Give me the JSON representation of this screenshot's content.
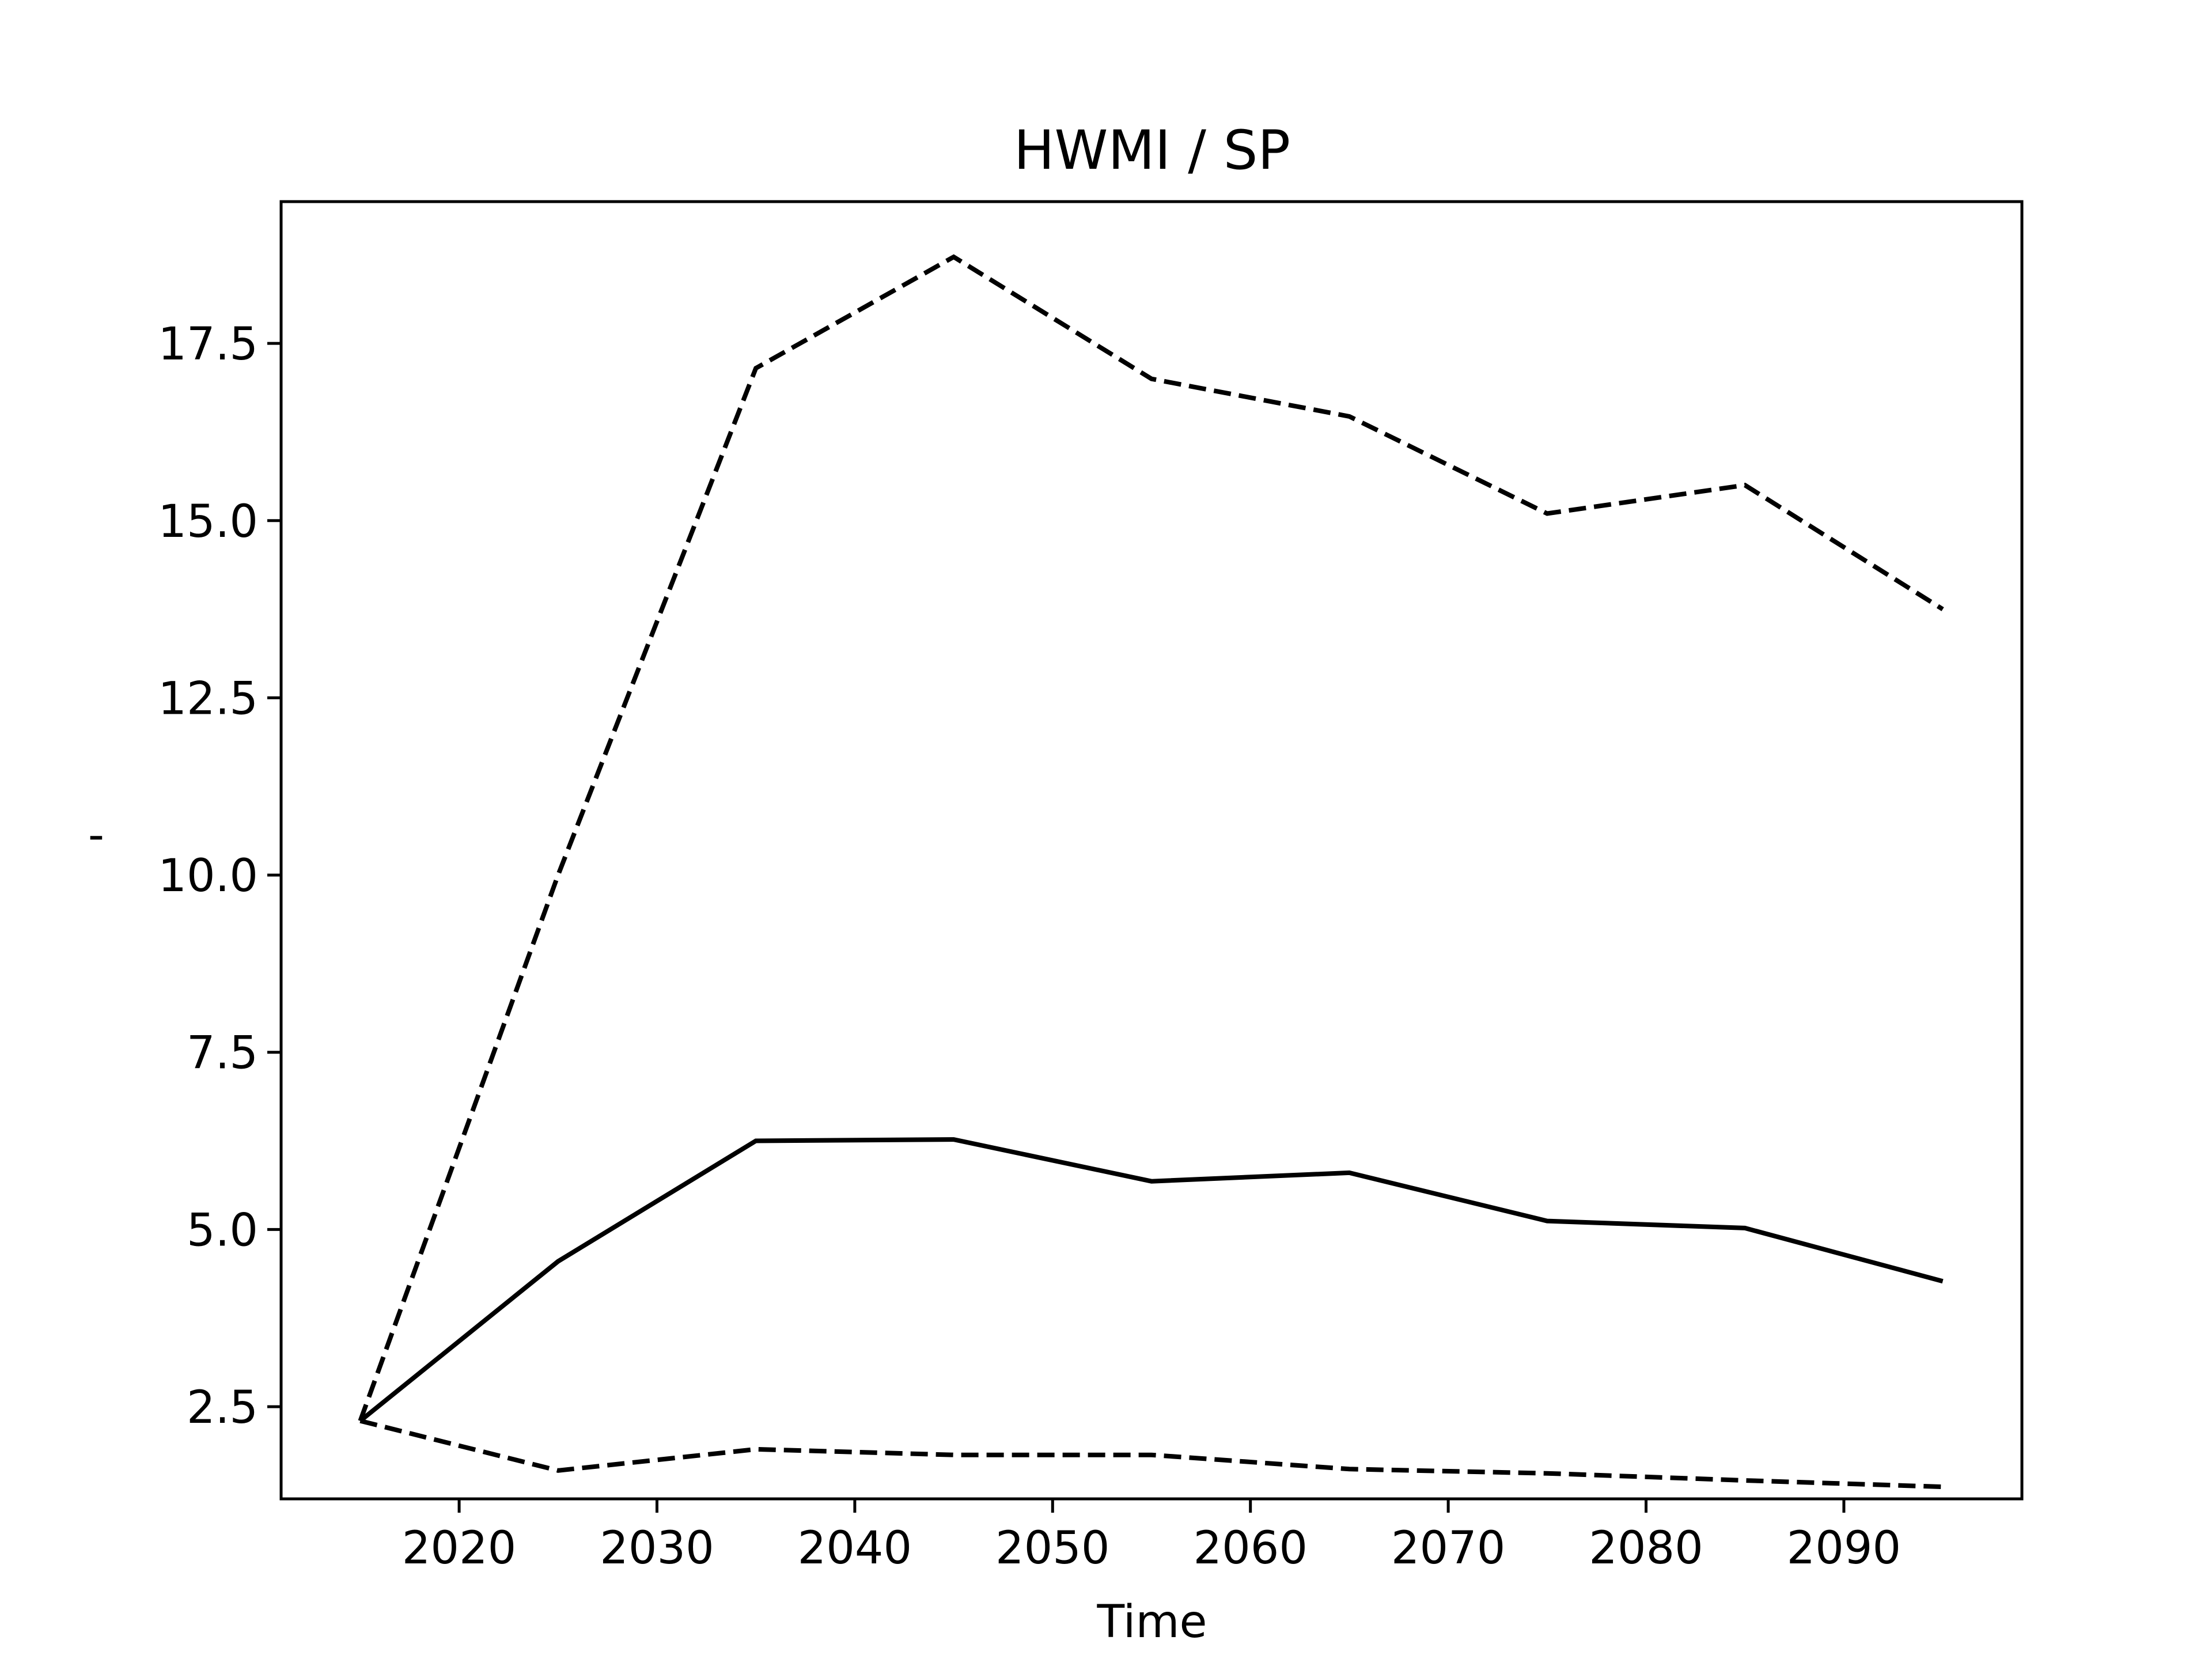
{
  "chart_data": {
    "type": "line",
    "title": "HWMI / SP",
    "xlabel": "Time",
    "ylabel": "-",
    "xlim": [
      2011,
      2099
    ],
    "ylim": [
      1.2,
      19.5
    ],
    "xticks": [
      2020,
      2030,
      2040,
      2050,
      2060,
      2070,
      2080,
      2090
    ],
    "xtick_labels": [
      "2020",
      "2030",
      "2040",
      "2050",
      "2060",
      "2070",
      "2080",
      "2090"
    ],
    "yticks": [
      2.5,
      5.0,
      7.5,
      10.0,
      12.5,
      15.0,
      17.5
    ],
    "ytick_labels": [
      "2.5",
      "5.0",
      "7.5",
      "10.0",
      "12.5",
      "15.0",
      "17.5"
    ],
    "grid": false,
    "legend": "none",
    "x": [
      2015,
      2025,
      2035,
      2045,
      2055,
      2065,
      2075,
      2085,
      2095
    ],
    "series": [
      {
        "style": "solid",
        "color": "#000000",
        "values": [
          2.3,
          4.55,
          6.25,
          6.27,
          5.68,
          5.8,
          5.12,
          5.02,
          4.27
        ]
      },
      {
        "style": "dashed",
        "color": "#000000",
        "values": [
          2.3,
          10.0,
          17.15,
          18.72,
          17.0,
          16.47,
          15.1,
          15.5,
          13.75
        ]
      },
      {
        "style": "dashed",
        "color": "#000000",
        "values": [
          2.3,
          1.6,
          1.9,
          1.82,
          1.82,
          1.62,
          1.56,
          1.46,
          1.37
        ]
      }
    ]
  }
}
